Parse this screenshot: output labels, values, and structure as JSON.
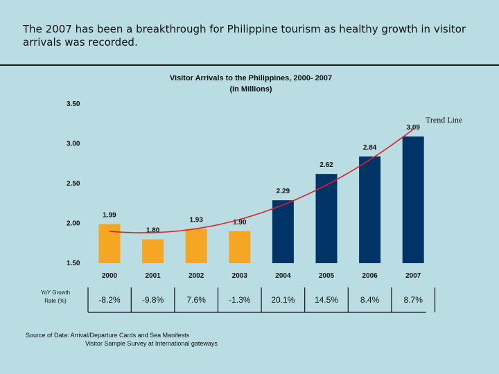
{
  "headline": "The 2007 has been a breakthrough for Philippine tourism as healthy growth in visitor arrivals was recorded.",
  "chart_data": {
    "type": "bar",
    "title": "Visitor Arrivals to the Philippines, 2000- 2007",
    "subtitle": "(In Millions)",
    "categories": [
      "2000",
      "2001",
      "2002",
      "2003",
      "2004",
      "2005",
      "2006",
      "2007"
    ],
    "values": [
      1.99,
      1.8,
      1.93,
      1.9,
      2.29,
      2.62,
      2.84,
      3.09
    ],
    "value_labels": [
      "1.99",
      "1.80",
      "1.93",
      "1.90",
      "2.29",
      "2.62",
      "2.84",
      "3.09"
    ],
    "bar_colors": [
      "#f5a623",
      "#f5a623",
      "#f5a623",
      "#f5a623",
      "#003366",
      "#003366",
      "#003366",
      "#003366"
    ],
    "ylim": [
      1.5,
      3.5
    ],
    "yticks": [
      "1.50",
      "2.00",
      "2.50",
      "3.00",
      "3.50"
    ],
    "trend_label": "Trend Line",
    "trend_color": "#e0202a",
    "grid": false,
    "yoy_header": [
      "YoY Growth",
      "Rate (%)"
    ],
    "yoy": [
      "-8.2%",
      "-9.8%",
      "7.6%",
      "-1.3%",
      "20.1%",
      "14.5%",
      "8.4%",
      "8.7%"
    ]
  },
  "source": [
    "Source of Data: Arrival/Departure Cards and Sea Manifests",
    "Visitor Sample Survey at International gateways"
  ]
}
